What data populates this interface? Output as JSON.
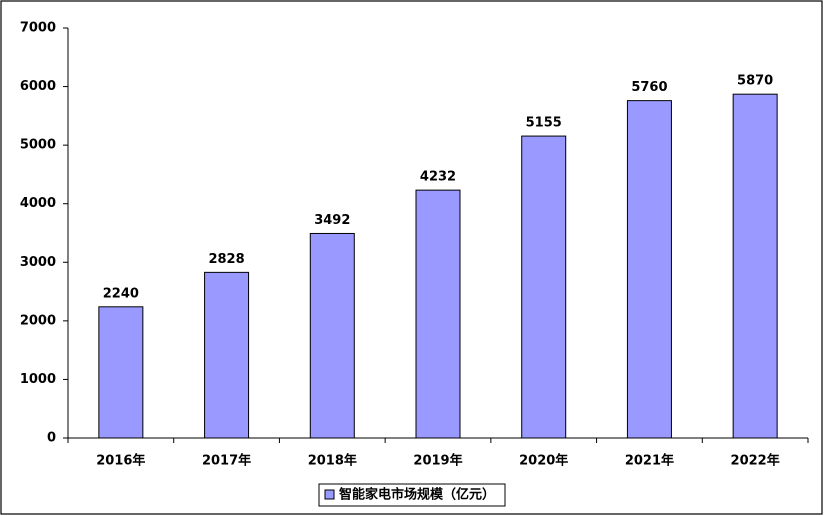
{
  "chart_data": {
    "type": "bar",
    "categories": [
      "2016年",
      "2017年",
      "2018年",
      "2019年",
      "2020年",
      "2021年",
      "2022年"
    ],
    "series": [
      {
        "name": "智能家电市场规模（亿元）",
        "color": "#9999ff",
        "values": [
          2240,
          2828,
          3492,
          4232,
          5155,
          5760,
          5870
        ]
      }
    ],
    "ylim": [
      0,
      7000
    ],
    "yticks": [
      0,
      1000,
      2000,
      3000,
      4000,
      5000,
      6000,
      7000
    ],
    "grid": false,
    "legend": "bottom",
    "data_labels": true
  }
}
